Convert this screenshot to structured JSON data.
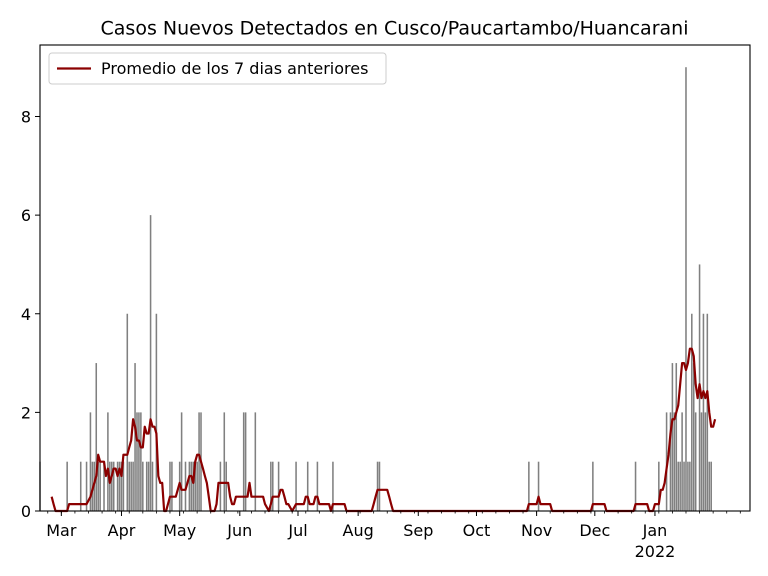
{
  "chart_data": {
    "type": "bar",
    "title": "Casos Nuevos Detectados en Cusco/Paucartambo/Huancarani",
    "xlabel": "",
    "ylabel": "",
    "x_range": [
      "2021-02-18",
      "2022-02-19"
    ],
    "ylim": [
      0,
      9.45
    ],
    "y_ticks": [
      0,
      2,
      4,
      6,
      8
    ],
    "x_ticks": [
      {
        "date": "2021-03-01",
        "label": "Mar"
      },
      {
        "date": "2021-04-01",
        "label": "Apr"
      },
      {
        "date": "2021-05-01",
        "label": "May"
      },
      {
        "date": "2021-06-01",
        "label": "Jun"
      },
      {
        "date": "2021-07-01",
        "label": "Jul"
      },
      {
        "date": "2021-08-01",
        "label": "Aug"
      },
      {
        "date": "2021-09-01",
        "label": "Sep"
      },
      {
        "date": "2021-10-01",
        "label": "Oct"
      },
      {
        "date": "2021-11-01",
        "label": "Nov"
      },
      {
        "date": "2021-12-01",
        "label": "Dec"
      },
      {
        "date": "2022-01-01",
        "label": "Jan",
        "year": "2022"
      }
    ],
    "grid": false,
    "legend_position": "upper-left",
    "bar_color": "#808080",
    "line_color": "#8b0000",
    "series": [
      {
        "name": "",
        "type": "bar",
        "points": [
          [
            "2021-02-18",
            1
          ],
          [
            "2021-03-04",
            1
          ],
          [
            "2021-03-11",
            1
          ],
          [
            "2021-03-14",
            1
          ],
          [
            "2021-03-16",
            2
          ],
          [
            "2021-03-17",
            1
          ],
          [
            "2021-03-18",
            1
          ],
          [
            "2021-03-19",
            3
          ],
          [
            "2021-03-20",
            1
          ],
          [
            "2021-03-21",
            1
          ],
          [
            "2021-03-23",
            1
          ],
          [
            "2021-03-25",
            2
          ],
          [
            "2021-03-26",
            1
          ],
          [
            "2021-03-27",
            1
          ],
          [
            "2021-03-28",
            1
          ],
          [
            "2021-03-30",
            1
          ],
          [
            "2021-03-31",
            1
          ],
          [
            "2021-04-01",
            1
          ],
          [
            "2021-04-02",
            1
          ],
          [
            "2021-04-04",
            4
          ],
          [
            "2021-04-05",
            1
          ],
          [
            "2021-04-06",
            1
          ],
          [
            "2021-04-07",
            1
          ],
          [
            "2021-04-08",
            3
          ],
          [
            "2021-04-09",
            2
          ],
          [
            "2021-04-10",
            2
          ],
          [
            "2021-04-11",
            2
          ],
          [
            "2021-04-12",
            1
          ],
          [
            "2021-04-14",
            1
          ],
          [
            "2021-04-15",
            1
          ],
          [
            "2021-04-16",
            6
          ],
          [
            "2021-04-17",
            1
          ],
          [
            "2021-04-19",
            4
          ],
          [
            "2021-04-26",
            1
          ],
          [
            "2021-04-27",
            1
          ],
          [
            "2021-05-01",
            1
          ],
          [
            "2021-05-02",
            2
          ],
          [
            "2021-05-04",
            1
          ],
          [
            "2021-05-06",
            1
          ],
          [
            "2021-05-07",
            1
          ],
          [
            "2021-05-08",
            1
          ],
          [
            "2021-05-09",
            1
          ],
          [
            "2021-05-10",
            1
          ],
          [
            "2021-05-11",
            2
          ],
          [
            "2021-05-12",
            2
          ],
          [
            "2021-05-22",
            1
          ],
          [
            "2021-05-24",
            2
          ],
          [
            "2021-05-25",
            1
          ],
          [
            "2021-06-03",
            2
          ],
          [
            "2021-06-04",
            2
          ],
          [
            "2021-06-09",
            2
          ],
          [
            "2021-06-17",
            1
          ],
          [
            "2021-06-18",
            1
          ],
          [
            "2021-06-21",
            1
          ],
          [
            "2021-06-30",
            1
          ],
          [
            "2021-07-06",
            1
          ],
          [
            "2021-07-11",
            1
          ],
          [
            "2021-07-19",
            1
          ],
          [
            "2021-08-11",
            1
          ],
          [
            "2021-08-12",
            1
          ],
          [
            "2021-10-28",
            1
          ],
          [
            "2021-11-02",
            1
          ],
          [
            "2021-11-30",
            1
          ],
          [
            "2021-12-22",
            1
          ],
          [
            "2022-01-03",
            1
          ],
          [
            "2022-01-07",
            2
          ],
          [
            "2022-01-09",
            2
          ],
          [
            "2022-01-10",
            3
          ],
          [
            "2022-01-11",
            2
          ],
          [
            "2022-01-12",
            3
          ],
          [
            "2022-01-13",
            1
          ],
          [
            "2022-01-14",
            1
          ],
          [
            "2022-01-15",
            2
          ],
          [
            "2022-01-16",
            1
          ],
          [
            "2022-01-17",
            9
          ],
          [
            "2022-01-18",
            1
          ],
          [
            "2022-01-19",
            1
          ],
          [
            "2022-01-20",
            4
          ],
          [
            "2022-01-21",
            3
          ],
          [
            "2022-01-22",
            2
          ],
          [
            "2022-01-24",
            5
          ],
          [
            "2022-01-25",
            2
          ],
          [
            "2022-01-26",
            4
          ],
          [
            "2022-01-27",
            2
          ],
          [
            "2022-01-28",
            4
          ],
          [
            "2022-01-29",
            1
          ],
          [
            "2022-01-30",
            1
          ]
        ]
      },
      {
        "name": "Promedio de los 7 dias anteriores",
        "type": "line",
        "points": [
          [
            "2021-02-24",
            0.29
          ],
          [
            "2021-02-25",
            0.14
          ],
          [
            "2021-02-26",
            0
          ],
          [
            "2021-03-04",
            0
          ],
          [
            "2021-03-05",
            0.14
          ],
          [
            "2021-03-14",
            0.14
          ],
          [
            "2021-03-16",
            0.29
          ],
          [
            "2021-03-17",
            0.43
          ],
          [
            "2021-03-18",
            0.57
          ],
          [
            "2021-03-19",
            0.71
          ],
          [
            "2021-03-20",
            1.14
          ],
          [
            "2021-03-21",
            1.0
          ],
          [
            "2021-03-22",
            1.0
          ],
          [
            "2021-03-23",
            1.0
          ],
          [
            "2021-03-24",
            0.71
          ],
          [
            "2021-03-25",
            0.86
          ],
          [
            "2021-03-26",
            0.57
          ],
          [
            "2021-03-27",
            0.71
          ],
          [
            "2021-03-28",
            0.86
          ],
          [
            "2021-03-29",
            0.86
          ],
          [
            "2021-03-30",
            0.71
          ],
          [
            "2021-03-31",
            0.86
          ],
          [
            "2021-04-01",
            0.71
          ],
          [
            "2021-04-02",
            1.14
          ],
          [
            "2021-04-03",
            1.14
          ],
          [
            "2021-04-04",
            1.14
          ],
          [
            "2021-04-05",
            1.29
          ],
          [
            "2021-04-06",
            1.43
          ],
          [
            "2021-04-07",
            1.86
          ],
          [
            "2021-04-08",
            1.71
          ],
          [
            "2021-04-09",
            1.43
          ],
          [
            "2021-04-10",
            1.43
          ],
          [
            "2021-04-11",
            1.29
          ],
          [
            "2021-04-12",
            1.29
          ],
          [
            "2021-04-13",
            1.71
          ],
          [
            "2021-04-14",
            1.57
          ],
          [
            "2021-04-15",
            1.57
          ],
          [
            "2021-04-16",
            1.86
          ],
          [
            "2021-04-17",
            1.71
          ],
          [
            "2021-04-18",
            1.71
          ],
          [
            "2021-04-19",
            1.57
          ],
          [
            "2021-04-20",
            0.71
          ],
          [
            "2021-04-21",
            0.57
          ],
          [
            "2021-04-22",
            0.57
          ],
          [
            "2021-04-23",
            0
          ],
          [
            "2021-04-24",
            0
          ],
          [
            "2021-04-26",
            0.29
          ],
          [
            "2021-04-29",
            0.29
          ],
          [
            "2021-04-30",
            0.43
          ],
          [
            "2021-05-01",
            0.57
          ],
          [
            "2021-05-02",
            0.43
          ],
          [
            "2021-05-03",
            0.43
          ],
          [
            "2021-05-04",
            0.43
          ],
          [
            "2021-05-05",
            0.57
          ],
          [
            "2021-05-06",
            0.71
          ],
          [
            "2021-05-07",
            0.71
          ],
          [
            "2021-05-08",
            0.57
          ],
          [
            "2021-05-09",
            1.0
          ],
          [
            "2021-05-10",
            1.14
          ],
          [
            "2021-05-11",
            1.14
          ],
          [
            "2021-05-12",
            1.0
          ],
          [
            "2021-05-13",
            0.86
          ],
          [
            "2021-05-14",
            0.71
          ],
          [
            "2021-05-15",
            0.57
          ],
          [
            "2021-05-16",
            0.29
          ],
          [
            "2021-05-17",
            0
          ],
          [
            "2021-05-19",
            0
          ],
          [
            "2021-05-20",
            0.14
          ],
          [
            "2021-05-21",
            0.57
          ],
          [
            "2021-05-26",
            0.57
          ],
          [
            "2021-05-27",
            0.29
          ],
          [
            "2021-05-28",
            0.14
          ],
          [
            "2021-05-29",
            0.14
          ],
          [
            "2021-05-30",
            0.29
          ],
          [
            "2021-06-05",
            0.29
          ],
          [
            "2021-06-06",
            0.57
          ],
          [
            "2021-06-07",
            0.29
          ],
          [
            "2021-06-13",
            0.29
          ],
          [
            "2021-06-14",
            0.14
          ],
          [
            "2021-06-16",
            0
          ],
          [
            "2021-06-17",
            0.14
          ],
          [
            "2021-06-18",
            0.29
          ],
          [
            "2021-06-21",
            0.29
          ],
          [
            "2021-06-22",
            0.43
          ],
          [
            "2021-06-23",
            0.43
          ],
          [
            "2021-06-24",
            0.29
          ],
          [
            "2021-06-25",
            0.14
          ],
          [
            "2021-06-26",
            0.14
          ],
          [
            "2021-06-28",
            0
          ],
          [
            "2021-06-30",
            0.14
          ],
          [
            "2021-07-02",
            0.14
          ],
          [
            "2021-07-04",
            0.14
          ],
          [
            "2021-07-05",
            0.29
          ],
          [
            "2021-07-06",
            0.29
          ],
          [
            "2021-07-07",
            0.14
          ],
          [
            "2021-07-08",
            0.14
          ],
          [
            "2021-07-09",
            0.14
          ],
          [
            "2021-07-10",
            0.29
          ],
          [
            "2021-07-11",
            0.29
          ],
          [
            "2021-07-12",
            0.14
          ],
          [
            "2021-07-16",
            0.14
          ],
          [
            "2021-07-17",
            0.14
          ],
          [
            "2021-07-18",
            0
          ],
          [
            "2021-07-19",
            0.14
          ],
          [
            "2021-07-25",
            0.14
          ],
          [
            "2021-07-26",
            0
          ],
          [
            "2021-08-08",
            0
          ],
          [
            "2021-08-09",
            0.14
          ],
          [
            "2021-08-10",
            0.29
          ],
          [
            "2021-08-11",
            0.43
          ],
          [
            "2021-08-16",
            0.43
          ],
          [
            "2021-08-17",
            0.29
          ],
          [
            "2021-08-18",
            0.14
          ],
          [
            "2021-08-19",
            0
          ],
          [
            "2021-10-27",
            0
          ],
          [
            "2021-10-28",
            0.14
          ],
          [
            "2021-10-29",
            0.14
          ],
          [
            "2021-11-01",
            0.14
          ],
          [
            "2021-11-02",
            0.29
          ],
          [
            "2021-11-03",
            0.14
          ],
          [
            "2021-11-04",
            0.14
          ],
          [
            "2021-11-08",
            0.14
          ],
          [
            "2021-11-09",
            0
          ],
          [
            "2021-11-29",
            0
          ],
          [
            "2021-11-30",
            0.14
          ],
          [
            "2021-12-06",
            0.14
          ],
          [
            "2021-12-07",
            0
          ],
          [
            "2021-12-21",
            0
          ],
          [
            "2021-12-22",
            0.14
          ],
          [
            "2021-12-28",
            0.14
          ],
          [
            "2021-12-29",
            0
          ],
          [
            "2021-12-31",
            0
          ],
          [
            "2022-01-01",
            0.14
          ],
          [
            "2022-01-02",
            0.14
          ],
          [
            "2022-01-03",
            0.14
          ],
          [
            "2022-01-04",
            0.43
          ],
          [
            "2022-01-05",
            0.43
          ],
          [
            "2022-01-06",
            0.57
          ],
          [
            "2022-01-07",
            0.86
          ],
          [
            "2022-01-08",
            1.14
          ],
          [
            "2022-01-09",
            1.57
          ],
          [
            "2022-01-10",
            1.86
          ],
          [
            "2022-01-11",
            1.86
          ],
          [
            "2022-01-12",
            2.0
          ],
          [
            "2022-01-13",
            2.14
          ],
          [
            "2022-01-14",
            2.57
          ],
          [
            "2022-01-15",
            3.0
          ],
          [
            "2022-01-16",
            3.0
          ],
          [
            "2022-01-17",
            2.86
          ],
          [
            "2022-01-18",
            3.0
          ],
          [
            "2022-01-19",
            3.29
          ],
          [
            "2022-01-20",
            3.29
          ],
          [
            "2022-01-21",
            3.14
          ],
          [
            "2022-01-22",
            2.57
          ],
          [
            "2022-01-23",
            2.29
          ],
          [
            "2022-01-24",
            2.57
          ],
          [
            "2022-01-25",
            2.29
          ],
          [
            "2022-01-26",
            2.43
          ],
          [
            "2022-01-27",
            2.29
          ],
          [
            "2022-01-28",
            2.43
          ],
          [
            "2022-01-29",
            2.0
          ],
          [
            "2022-01-30",
            1.71
          ],
          [
            "2022-01-31",
            1.71
          ],
          [
            "2022-02-01",
            1.86
          ]
        ]
      }
    ]
  }
}
